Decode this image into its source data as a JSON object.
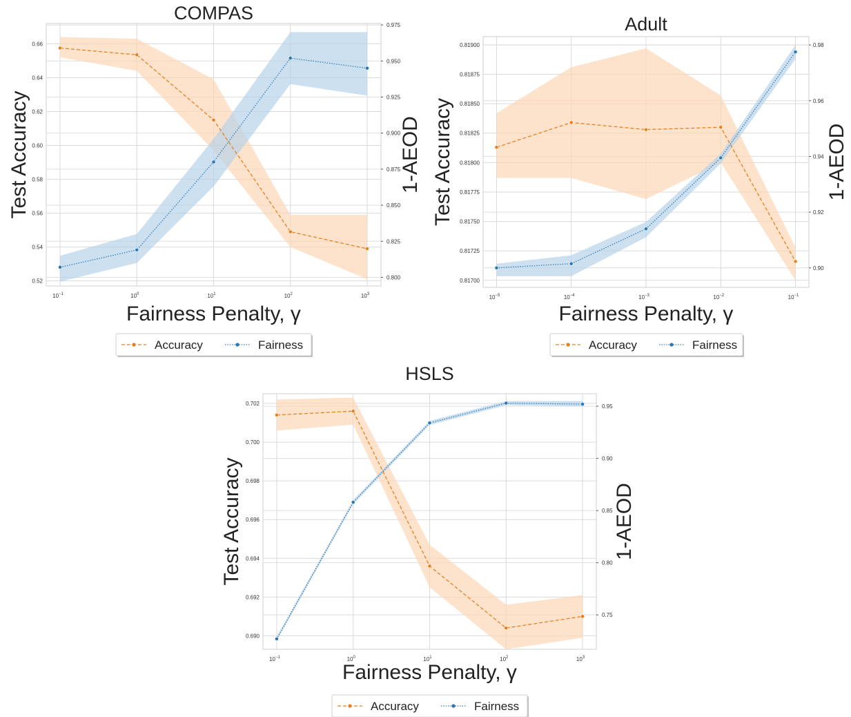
{
  "chart_data": [
    {
      "type": "line",
      "title": "COMPAS",
      "xlabel": "Fairness Penalty, γ",
      "ylabel": "Test Accuracy",
      "y2label": "1-AEOD",
      "x_scale": "log",
      "x": [
        0.1,
        1,
        10,
        100,
        1000
      ],
      "x_ticks": [
        {
          "b": "10",
          "e": "−1"
        },
        {
          "b": "10",
          "e": "0"
        },
        {
          "b": "10",
          "e": "1"
        },
        {
          "b": "10",
          "e": "2"
        },
        {
          "b": "10",
          "e": "3"
        }
      ],
      "ylim": [
        0.517,
        0.672
      ],
      "y_ticks": [
        "0.52",
        "0.54",
        "0.56",
        "0.58",
        "0.60",
        "0.62",
        "0.64",
        "0.66"
      ],
      "y2lim": [
        0.794,
        0.976
      ],
      "y2_ticks": [
        "0.800",
        "0.825",
        "0.850",
        "0.875",
        "0.900",
        "0.925",
        "0.950",
        "0.975"
      ],
      "grid": true,
      "legend": "bottom-center",
      "series": [
        {
          "name": "Accuracy",
          "axis": "left",
          "color": "#e6801e",
          "fill": "#fdd5b4",
          "style": "dashed",
          "values": [
            0.6575,
            0.6535,
            0.615,
            0.549,
            0.539
          ],
          "lower": [
            0.652,
            0.644,
            0.597,
            0.54,
            0.521
          ],
          "upper": [
            0.664,
            0.663,
            0.639,
            0.559,
            0.559
          ]
        },
        {
          "name": "Fairness",
          "axis": "right",
          "color": "#2a77b4",
          "fill": "#b4d1e8",
          "style": "dotted",
          "values": [
            0.807,
            0.819,
            0.88,
            0.952,
            0.945
          ],
          "lower": [
            0.797,
            0.81,
            0.863,
            0.934,
            0.926
          ],
          "upper": [
            0.815,
            0.83,
            0.896,
            0.97,
            0.97
          ]
        }
      ]
    },
    {
      "type": "line",
      "title": "Adult",
      "xlabel": "Fairness Penalty, γ",
      "ylabel": "Test Accuracy",
      "y2label": "1-AEOD",
      "x_scale": "log",
      "x": [
        1e-05,
        0.0001,
        0.001,
        0.01,
        0.1
      ],
      "x_ticks": [
        {
          "b": "10",
          "e": "−5"
        },
        {
          "b": "10",
          "e": "−4"
        },
        {
          "b": "10",
          "e": "−3"
        },
        {
          "b": "10",
          "e": "−2"
        },
        {
          "b": "10",
          "e": "−1"
        }
      ],
      "ylim": [
        0.81694,
        0.81907
      ],
      "y_ticks": [
        "0.81700",
        "0.81725",
        "0.81750",
        "0.81775",
        "0.81800",
        "0.81825",
        "0.81850",
        "0.81875",
        "0.81900"
      ],
      "y2lim": [
        0.893,
        0.983
      ],
      "y2_ticks": [
        "0.90",
        "0.92",
        "0.94",
        "0.96",
        "0.98"
      ],
      "grid": true,
      "legend": "bottom-center",
      "series": [
        {
          "name": "Accuracy",
          "axis": "left",
          "color": "#e6801e",
          "fill": "#fdd5b4",
          "style": "dashed",
          "values": [
            0.81813,
            0.81834,
            0.81828,
            0.8183,
            0.81716
          ],
          "lower": [
            0.81787,
            0.81787,
            0.81769,
            0.818,
            0.817
          ],
          "upper": [
            0.81842,
            0.81881,
            0.81897,
            0.81857,
            0.81728
          ]
        },
        {
          "name": "Fairness",
          "axis": "right",
          "color": "#2a77b4",
          "fill": "#b4d1e8",
          "style": "dotted",
          "values": [
            0.9,
            0.9015,
            0.914,
            0.9395,
            0.9775
          ],
          "lower": [
            0.897,
            0.897,
            0.911,
            0.9375,
            0.975
          ],
          "upper": [
            0.9015,
            0.9045,
            0.9165,
            0.941,
            0.98
          ]
        }
      ]
    },
    {
      "type": "line",
      "title": "HSLS",
      "xlabel": "Fairness Penalty, γ",
      "ylabel": "Test Accuracy",
      "y2label": "1-AEOD",
      "x_scale": "log",
      "x": [
        0.1,
        1,
        10,
        100,
        1000
      ],
      "x_ticks": [
        {
          "b": "10",
          "e": "−1"
        },
        {
          "b": "10",
          "e": "0"
        },
        {
          "b": "10",
          "e": "1"
        },
        {
          "b": "10",
          "e": "2"
        },
        {
          "b": "10",
          "e": "3"
        }
      ],
      "ylim": [
        0.6893,
        0.7025
      ],
      "y_ticks": [
        "0.690",
        "0.692",
        "0.694",
        "0.696",
        "0.698",
        "0.700",
        "0.702"
      ],
      "y2lim": [
        0.717,
        0.962
      ],
      "y2_ticks": [
        "0.75",
        "0.80",
        "0.85",
        "0.90",
        "0.95"
      ],
      "grid": true,
      "legend": "bottom-center",
      "series": [
        {
          "name": "Accuracy",
          "axis": "left",
          "color": "#e6801e",
          "fill": "#fdd5b4",
          "style": "dashed",
          "values": [
            0.7014,
            0.7016,
            0.6936,
            0.6904,
            0.691
          ],
          "lower": [
            0.7006,
            0.7009,
            0.6925,
            0.6893,
            0.6899
          ],
          "upper": [
            0.7022,
            0.7023,
            0.6947,
            0.6916,
            0.6921
          ]
        },
        {
          "name": "Fairness",
          "axis": "right",
          "color": "#2a77b4",
          "fill": "#b4d1e8",
          "style": "dotted",
          "values": [
            0.727,
            0.858,
            0.934,
            0.953,
            0.952
          ],
          "lower": [
            0.725,
            0.856,
            0.932,
            0.951,
            0.95
          ],
          "upper": [
            0.729,
            0.86,
            0.936,
            0.955,
            0.955
          ]
        }
      ]
    }
  ]
}
